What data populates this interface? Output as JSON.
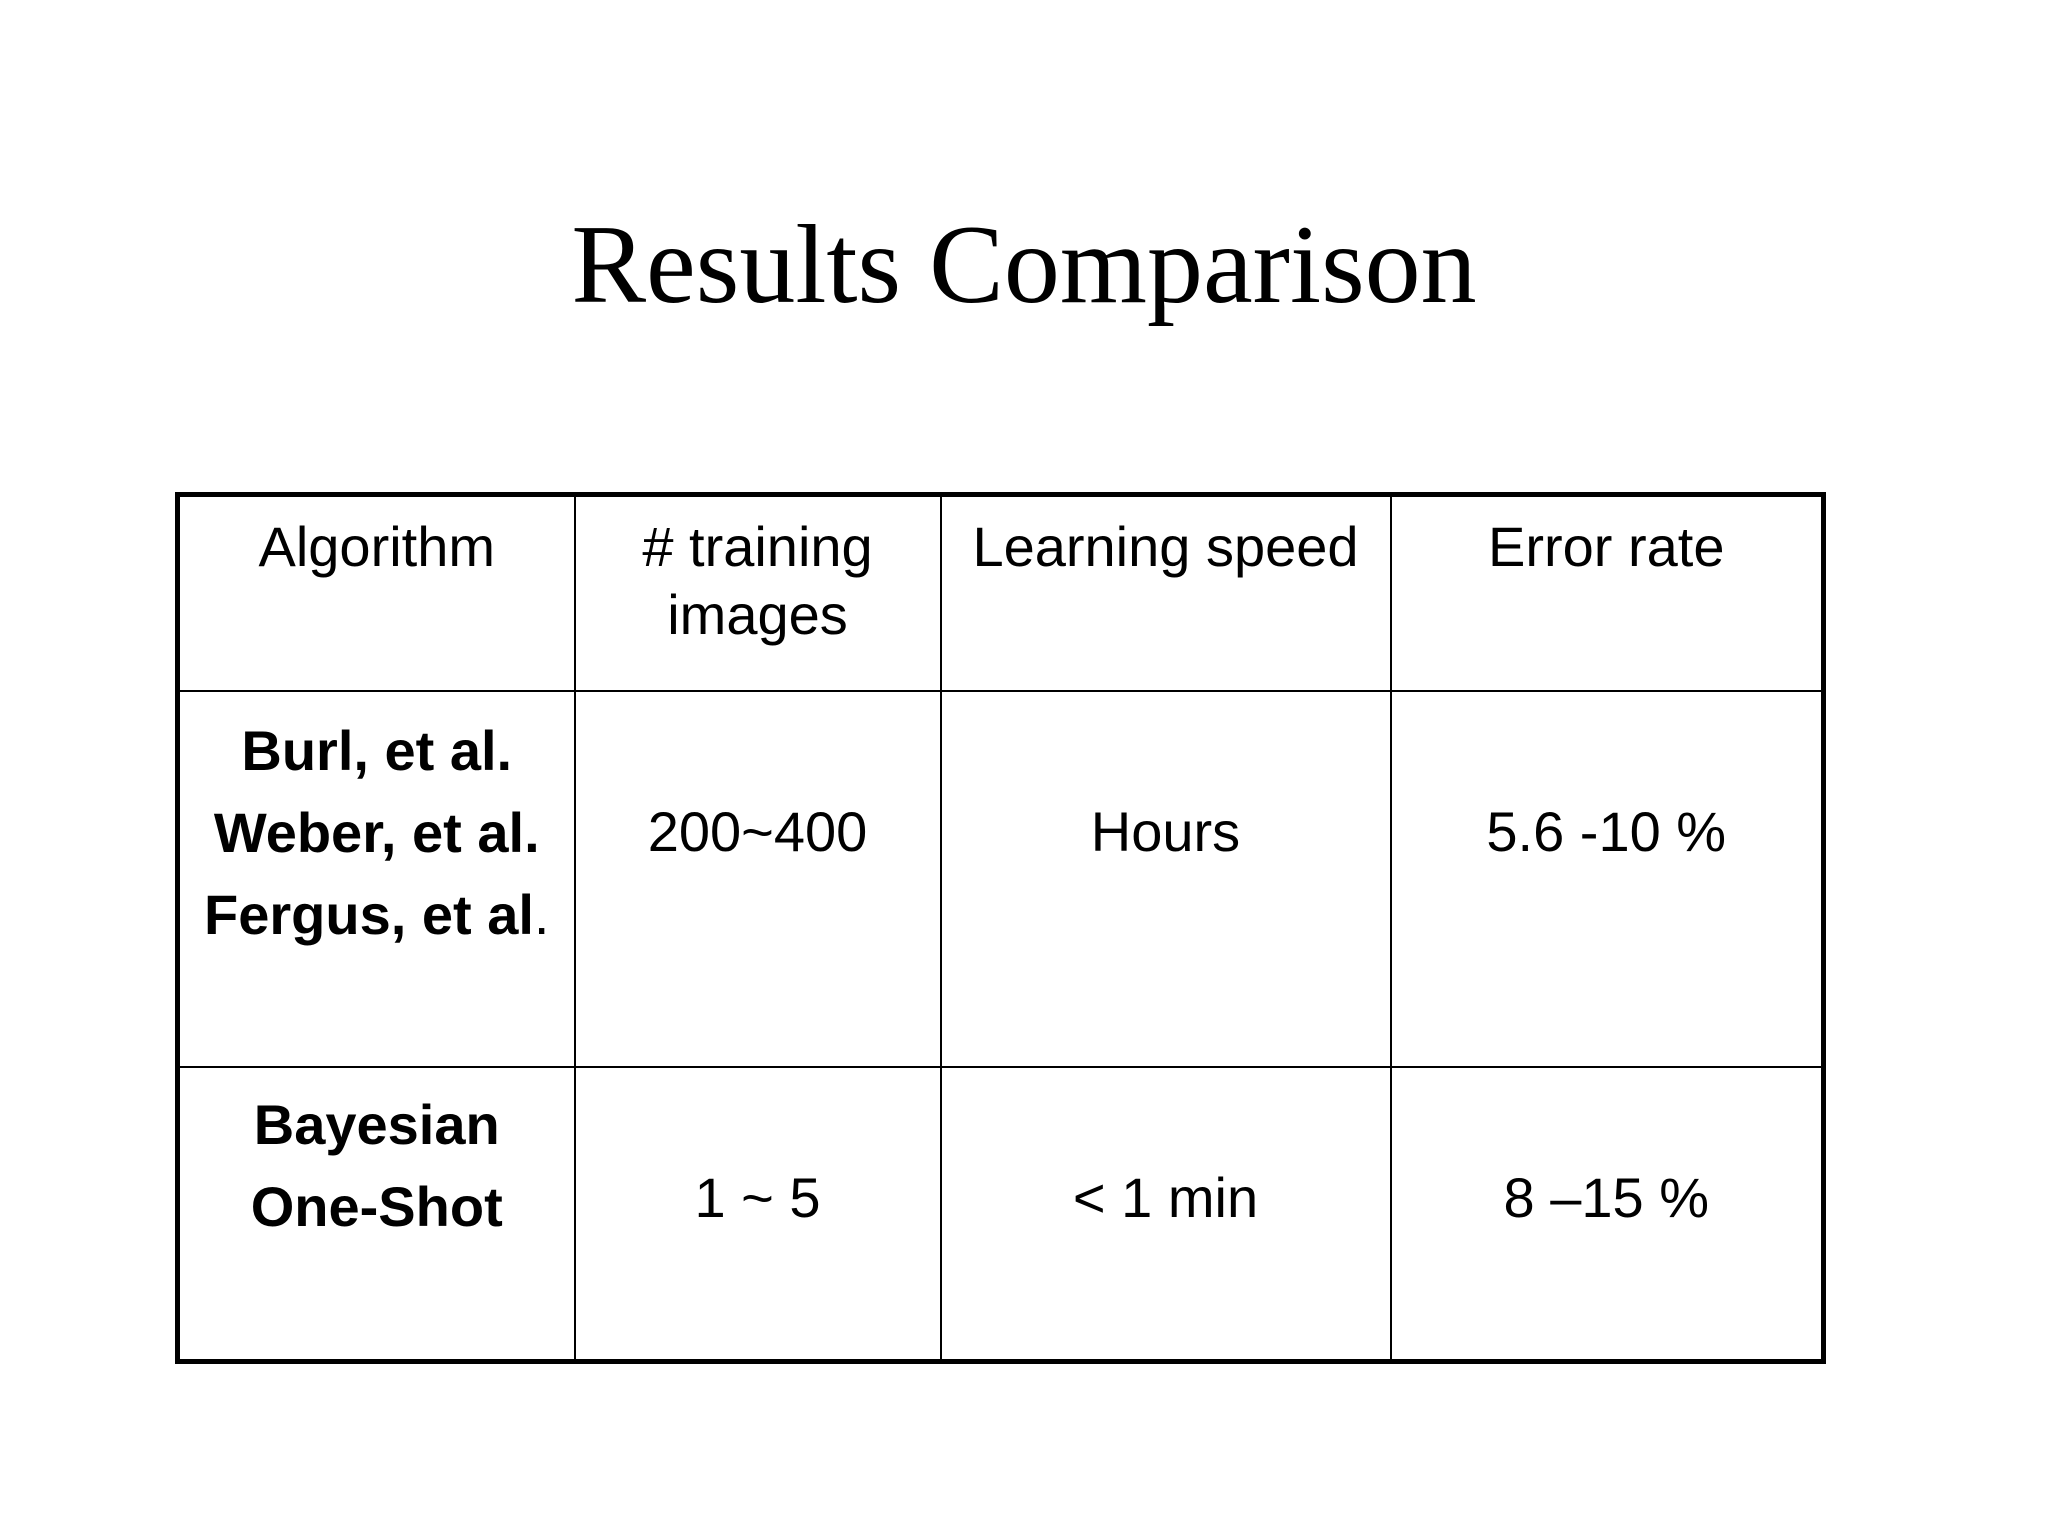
{
  "title": "Results Comparison",
  "table": {
    "headers": [
      "Algorithm",
      "# training images",
      "Learning speed",
      "Error rate"
    ],
    "header_training_line1": "# training",
    "header_training_line2": "images",
    "rows": [
      {
        "algorithm_lines": [
          "Burl, et al.",
          "Weber, et al.",
          "Fergus, et al"
        ],
        "algorithm_trailing": ".",
        "training_images": "200~400",
        "learning_speed": "Hours",
        "error_rate": "5.6 -10 %"
      },
      {
        "algorithm_lines": [
          "Bayesian",
          "One-Shot"
        ],
        "training_images": "1 ~ 5",
        "learning_speed": "< 1 min",
        "error_rate": "8 –15 %"
      }
    ]
  }
}
